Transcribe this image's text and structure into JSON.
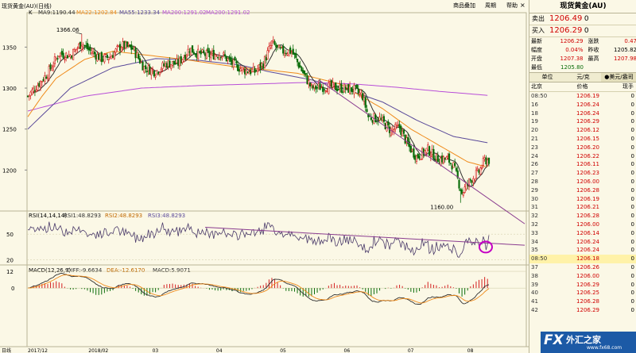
{
  "header": {
    "symbol_title": "现货黄金(AU)(日线)",
    "k_label": "K",
    "ma9": "MA9:1190.44",
    "ma22": "MA22:1202.84",
    "ma55": "MA55:1233.34",
    "ma200": "MA200:1291.02",
    "ma200b": "MA200:1291.02",
    "btn_add": "商品叠加",
    "btn_cycle": "周期",
    "btn_help": "帮助",
    "close_x": "×"
  },
  "colors": {
    "up": "#d42020",
    "down": "#0a6d0a",
    "ma9": "#303030",
    "ma22": "#ef8a1a",
    "ma55": "#5a4a9a",
    "ma200": "#b84dd8",
    "trendline": "#8a3c8f",
    "circle": "#c400c4",
    "background": "#fbf8e6"
  },
  "chart_data": [
    {
      "type": "candlestick",
      "title": "现货黄金(AU)(日线)",
      "x_tick_labels": [
        "2017/12",
        "2018/02",
        "03",
        "04",
        "05",
        "06",
        "07",
        "08"
      ],
      "y_ticks": [
        1200,
        1250,
        1300,
        1350
      ],
      "ylim": [
        1150,
        1392
      ],
      "annotations": {
        "high": "1366.06",
        "low": "1160.00"
      },
      "legend": [
        "MA9:1190.44",
        "MA22:1202.84",
        "MA55:1233.34",
        "MA200:1291.02"
      ],
      "moving_averages": {
        "MA22_anchor": [
          [
            0,
            1265
          ],
          [
            10,
            1290
          ],
          [
            20,
            1312
          ],
          [
            40,
            1335
          ],
          [
            60,
            1345
          ],
          [
            85,
            1340
          ],
          [
            110,
            1335
          ],
          [
            130,
            1330
          ],
          [
            150,
            1325
          ],
          [
            170,
            1322
          ],
          [
            190,
            1318
          ],
          [
            220,
            1305
          ],
          [
            250,
            1275
          ],
          [
            270,
            1250
          ],
          [
            290,
            1230
          ],
          [
            310,
            1210
          ],
          [
            325,
            1203
          ]
        ],
        "MA55_anchor": [
          [
            0,
            1250
          ],
          [
            30,
            1300
          ],
          [
            60,
            1325
          ],
          [
            90,
            1336
          ],
          [
            120,
            1334
          ],
          [
            150,
            1328
          ],
          [
            170,
            1320
          ],
          [
            200,
            1310
          ],
          [
            225,
            1298
          ],
          [
            250,
            1283
          ],
          [
            275,
            1260
          ],
          [
            300,
            1241
          ],
          [
            325,
            1233
          ]
        ],
        "MA200_anchor": [
          [
            0,
            1272
          ],
          [
            40,
            1290
          ],
          [
            80,
            1300
          ],
          [
            120,
            1303
          ],
          [
            160,
            1305
          ],
          [
            200,
            1307
          ],
          [
            230,
            1305
          ],
          [
            260,
            1301
          ],
          [
            290,
            1296
          ],
          [
            325,
            1291
          ]
        ]
      },
      "trendline": [
        [
          205,
          1310
        ],
        [
          325,
          1146
        ]
      ],
      "grid": false
    },
    {
      "type": "line",
      "title": "RSI(14,14,14)",
      "legend": [
        "RSI1:48.8293",
        "RSI2:48.8293",
        "RSI3:48.8293"
      ],
      "y_ticks": [
        20,
        50
      ],
      "ylim": [
        15,
        77
      ],
      "trendline": [
        [
          125,
          58
        ],
        [
          325,
          38
        ]
      ],
      "rsi_last": 48.8293
    },
    {
      "type": "bar",
      "title": "MACD(12,26,9)",
      "legend": [
        "DIFF:-9.6634",
        "DEA:-12.6170",
        "MACD:5.9071"
      ],
      "y_ticks": [
        12,
        0
      ],
      "ylim": [
        -42,
        16
      ],
      "macd_last": 5.9071,
      "diff_last": -9.6634,
      "dea_last": -12.617
    }
  ],
  "panels": {
    "rsi_title": "RSI(14,14,14)",
    "rsi1": "RSI1:48.8293",
    "rsi2": "RSI2:48.8293",
    "rsi3": "RSI3:48.8293",
    "macd_title": "MACD(12,26,9)",
    "diff": "DIFF:-9.6634",
    "dea": "DEA:-12.6170",
    "macd": "MACD:5.9071",
    "day_label": "日线",
    "y_1350": "1350",
    "y_1300": "1300",
    "y_1250": "1250",
    "y_1200": "1200",
    "y_50": "50",
    "y_20": "20",
    "y_12": "12",
    "y_0": "0",
    "hi_label": "1366.06",
    "lo_label": "1160.00",
    "x_labels": [
      "2017/12",
      "2018/02",
      "03",
      "04",
      "05",
      "06",
      "07",
      "08"
    ]
  },
  "quote": {
    "title": "现货黄金(AU)",
    "sell_label": "卖出",
    "sell_val": "1206.49",
    "sell_vol": "0",
    "buy_label": "买入",
    "buy_val": "1206.29",
    "buy_vol": "0",
    "latest_label": "最新",
    "latest": "1206.29",
    "chg_label": "涨跌",
    "chg": "0.47",
    "amp_label": "幅度",
    "amp": "0.04%",
    "prev_label": "昨收",
    "prev": "1205.82",
    "open_label": "开盘",
    "open": "1207.38",
    "high_label": "最高",
    "high": "1207.98",
    "low_label": "最低",
    "low": "1205.80",
    "unit_label": "单位",
    "unit_yuan": "元/克",
    "unit_usd": "美元/盎司",
    "col_beijing": "北京",
    "col_price": "价格",
    "col_volume": "现手",
    "ticks": [
      {
        "t": "08:50",
        "p": "1206.19",
        "v": "0"
      },
      {
        "t": "16",
        "p": "1206.24",
        "v": "0"
      },
      {
        "t": "18",
        "p": "1206.24",
        "v": "0"
      },
      {
        "t": "19",
        "p": "1206.29",
        "v": "0"
      },
      {
        "t": "20",
        "p": "1206.12",
        "v": "0"
      },
      {
        "t": "21",
        "p": "1206.15",
        "v": "0"
      },
      {
        "t": "23",
        "p": "1206.20",
        "v": "0"
      },
      {
        "t": "24",
        "p": "1206.22",
        "v": "0"
      },
      {
        "t": "26",
        "p": "1206.11",
        "v": "0"
      },
      {
        "t": "27",
        "p": "1206.23",
        "v": "0"
      },
      {
        "t": "28",
        "p": "1206.00",
        "v": "0"
      },
      {
        "t": "29",
        "p": "1206.28",
        "v": "0"
      },
      {
        "t": "30",
        "p": "1206.19",
        "v": "0"
      },
      {
        "t": "31",
        "p": "1206.21",
        "v": "0"
      },
      {
        "t": "32",
        "p": "1206.28",
        "v": "0"
      },
      {
        "t": "32",
        "p": "1206.00",
        "v": "0"
      },
      {
        "t": "33",
        "p": "1206.14",
        "v": "0"
      },
      {
        "t": "34",
        "p": "1206.24",
        "v": "0"
      },
      {
        "t": "35",
        "p": "1206.24",
        "v": "0"
      },
      {
        "t": "08:50",
        "p": "1206.18",
        "v": "0"
      },
      {
        "t": "37",
        "p": "1206.26",
        "v": "0"
      },
      {
        "t": "38",
        "p": "1206.00",
        "v": "0"
      },
      {
        "t": "39",
        "p": "1206.29",
        "v": "0"
      },
      {
        "t": "40",
        "p": "1206.25",
        "v": "0"
      },
      {
        "t": "41",
        "p": "1206.28",
        "v": "0"
      },
      {
        "t": "42",
        "p": "1206.29",
        "v": "0"
      }
    ]
  },
  "logo": {
    "fx": "FX",
    "name": "外汇之家",
    "url": "www.fx68.com"
  }
}
